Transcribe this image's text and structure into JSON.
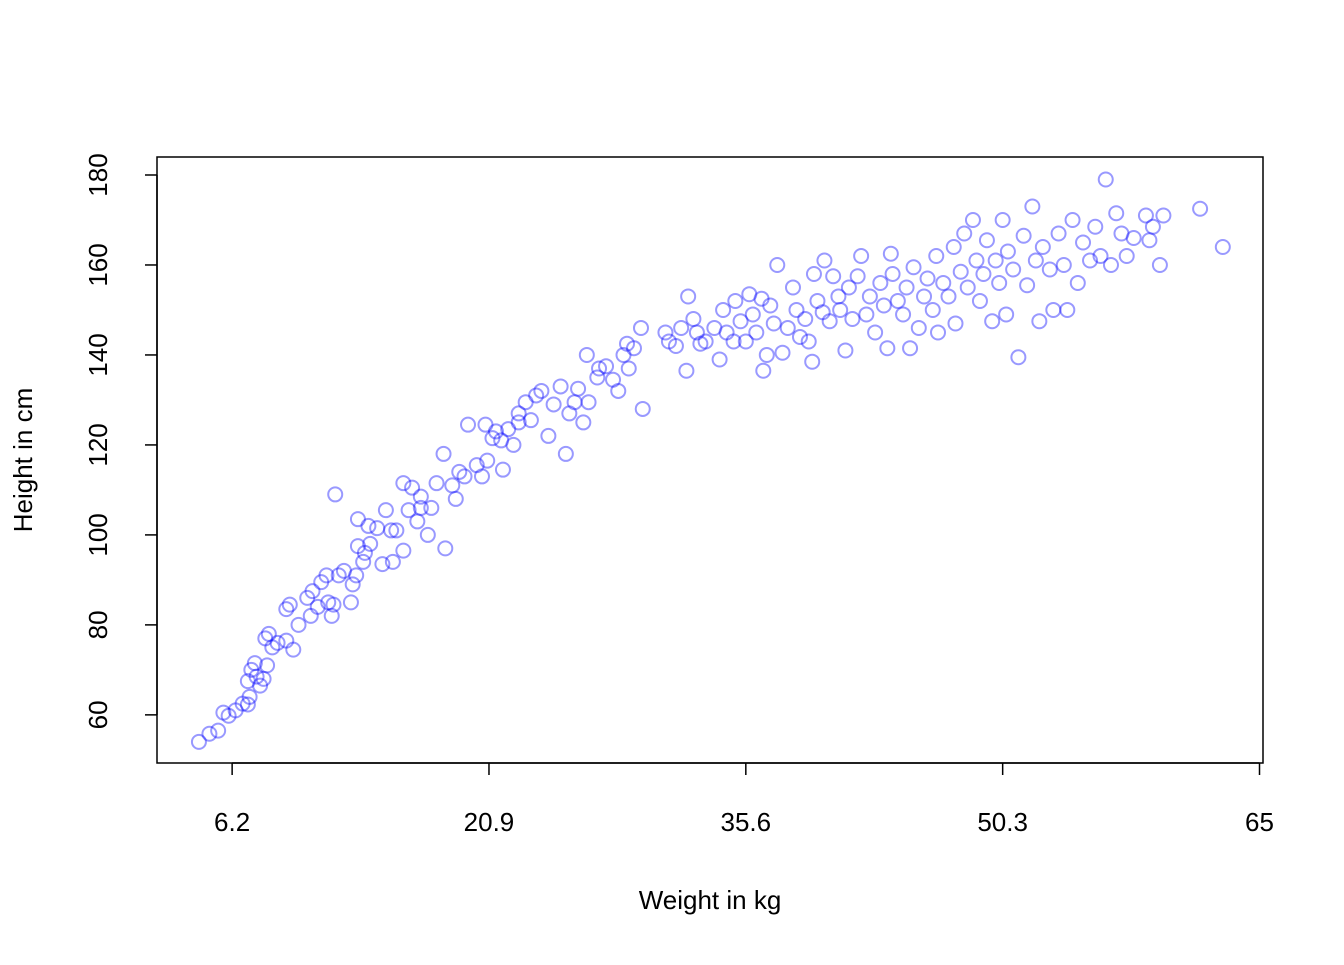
{
  "chart_data": {
    "type": "scatter",
    "xlabel": "Weight in kg",
    "ylabel": "Height in cm",
    "xlim": [
      1.9,
      65.2
    ],
    "ylim": [
      49.3,
      184
    ],
    "xticks": [
      6.2,
      20.9,
      35.6,
      50.3,
      65
    ],
    "yticks": [
      60,
      80,
      100,
      120,
      140,
      160,
      180
    ],
    "grid": false,
    "series": [
      {
        "color": "rgba(0,0,255,0.4)",
        "x": [
          4.3,
          4.9,
          5.4,
          5.7,
          6.0,
          6.4,
          6.8,
          7.1,
          7.2,
          7.1,
          7.3,
          7.5,
          7.6,
          7.8,
          8.0,
          8.2,
          8.1,
          8.3,
          8.5,
          8.8,
          9.3,
          9.7,
          9.3,
          9.5,
          10.0,
          10.5,
          10.7,
          10.8,
          11.1,
          11.3,
          11.6,
          11.7,
          11.9,
          12.0,
          12.3,
          12.1,
          12.6,
          13.0,
          13.1,
          13.3,
          13.4,
          13.4,
          13.7,
          13.8,
          14.0,
          14.1,
          14.5,
          14.8,
          15.0,
          15.3,
          15.6,
          15.4,
          16.0,
          16.0,
          16.3,
          16.5,
          16.8,
          17.0,
          17.0,
          17.4,
          17.6,
          17.9,
          18.3,
          18.4,
          18.8,
          19.0,
          19.2,
          19.5,
          19.7,
          20.2,
          20.5,
          20.8,
          20.7,
          21.1,
          21.3,
          21.6,
          21.7,
          22.0,
          22.3,
          22.6,
          22.6,
          23.0,
          23.3,
          23.6,
          23.9,
          24.3,
          24.6,
          25.0,
          25.3,
          25.5,
          25.8,
          26.0,
          26.3,
          26.6,
          26.5,
          27.1,
          27.2,
          27.6,
          28.0,
          28.3,
          28.6,
          28.8,
          28.9,
          29.2,
          29.6,
          29.7,
          31.0,
          31.2,
          31.6,
          31.9,
          32.2,
          32.3,
          32.6,
          32.8,
          33.0,
          33.3,
          33.8,
          34.1,
          34.3,
          34.5,
          34.9,
          35.0,
          35.3,
          35.6,
          35.8,
          36.0,
          36.2,
          36.5,
          36.6,
          36.8,
          37.0,
          37.2,
          37.4,
          37.7,
          38.0,
          38.3,
          38.5,
          38.7,
          39.0,
          39.2,
          39.4,
          39.5,
          39.7,
          40.0,
          40.1,
          40.4,
          40.6,
          40.9,
          41.0,
          41.3,
          41.5,
          41.7,
          42.0,
          42.2,
          42.5,
          42.7,
          43.0,
          43.3,
          43.5,
          43.7,
          43.9,
          44.0,
          44.3,
          44.6,
          44.8,
          45.0,
          45.2,
          45.5,
          45.8,
          46.0,
          46.3,
          46.5,
          46.6,
          46.9,
          47.2,
          47.5,
          47.6,
          47.9,
          48.1,
          48.3,
          48.6,
          48.8,
          49.0,
          49.2,
          49.4,
          49.7,
          49.9,
          50.1,
          50.3,
          50.5,
          50.6,
          50.9,
          51.2,
          51.5,
          51.7,
          52.0,
          52.2,
          52.4,
          52.6,
          53.0,
          53.2,
          53.5,
          53.8,
          54.0,
          54.3,
          54.6,
          54.9,
          55.3,
          55.6,
          55.9,
          56.2,
          56.5,
          56.8,
          57.1,
          57.4,
          57.8,
          58.5,
          58.7,
          58.9,
          59.3,
          59.5,
          61.6,
          62.9
        ],
        "values": [
          54,
          55.8,
          56.5,
          60.5,
          59.8,
          61,
          62.5,
          62.3,
          64,
          67.5,
          70,
          71.5,
          68.5,
          66.5,
          68,
          71,
          77,
          78,
          75,
          76,
          76.5,
          74.5,
          83.5,
          84.5,
          80,
          86,
          82,
          87.5,
          84,
          89.5,
          91,
          85,
          82,
          84.5,
          91,
          109,
          92,
          85,
          89,
          91,
          97.5,
          103.5,
          94,
          96,
          102,
          98,
          101.5,
          93.5,
          105.5,
          101,
          101,
          94,
          96.5,
          111.5,
          105.5,
          110.5,
          103,
          106,
          108.5,
          100,
          106,
          111.5,
          118,
          97,
          111,
          108,
          114,
          113,
          124.5,
          115.5,
          113,
          116.5,
          124.5,
          121.5,
          123,
          121,
          114.5,
          123.5,
          120,
          125,
          127,
          129.5,
          125.5,
          131,
          132,
          122,
          129,
          133,
          118,
          127,
          129.5,
          132.5,
          125,
          129.5,
          140,
          135,
          137,
          137.5,
          134.5,
          132,
          140,
          142.5,
          137,
          141.5,
          146,
          128,
          145,
          143,
          142,
          146,
          136.5,
          153,
          148,
          145,
          142.5,
          143,
          146,
          139,
          150,
          145,
          143,
          152,
          147.5,
          143,
          153.5,
          149,
          145,
          152.5,
          136.5,
          140,
          151,
          147,
          160,
          140.5,
          146,
          155,
          150,
          144,
          148,
          143,
          138.5,
          158,
          152,
          149.5,
          161,
          147.5,
          157.5,
          153,
          150,
          141,
          155,
          148,
          157.5,
          162,
          149,
          153,
          145,
          156,
          151,
          141.5,
          162.5,
          158,
          152,
          149,
          155,
          141.5,
          159.5,
          146,
          153,
          157,
          150,
          162,
          145,
          156,
          153,
          164,
          147,
          158.5,
          167,
          155,
          170,
          161,
          152,
          158,
          165.5,
          147.5,
          161,
          156,
          170,
          149,
          163,
          159,
          139.5,
          166.5,
          155.5,
          173,
          161,
          147.5,
          164,
          159,
          150,
          167,
          160,
          150,
          170,
          156,
          165,
          161,
          168.5,
          162,
          179,
          160,
          171.5,
          167,
          162,
          166,
          171,
          165.5,
          168.5,
          160,
          171,
          172.5,
          164
        ]
      }
    ]
  }
}
